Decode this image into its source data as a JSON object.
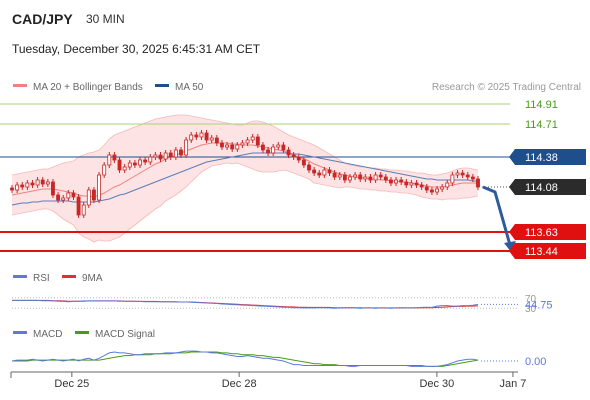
{
  "header": {
    "symbol": "CAD/JPY",
    "timeframe": "30 MIN",
    "datetime": "Tuesday, December 30, 2025 6:45:31 AM CET"
  },
  "legend": {
    "ma20": "MA 20 + Bollinger Bands",
    "ma50": "MA 50",
    "credit": "Research © 2025 Trading Central"
  },
  "colors": {
    "candle": "#c62828",
    "ma20": "#f28080",
    "band_fill": "#fde3e3",
    "ma50": "#5b7db8",
    "current_line": "#1f4e8c",
    "resistance": "#a5d37a",
    "resistance_text": "#4a9a1a",
    "support": "#e01010",
    "arrow": "#2e5c9a",
    "rsi": "#5b7bd5",
    "rsi_ma": "#e03030",
    "macd": "#5b7bd5",
    "macd_signal": "#4a9a1a"
  },
  "chart_data": [
    {
      "type": "candlestick",
      "series_names": [
        "MA 20 + Bollinger Bands",
        "MA 50"
      ],
      "ylim": [
        113.4,
        115.0
      ],
      "x_ticks": [
        {
          "label": "Dec 25",
          "pos": 0.12
        },
        {
          "label": "Dec 28",
          "pos": 0.45
        },
        {
          "label": "Dec 30",
          "pos": 0.84
        },
        {
          "label": "Jan 7",
          "pos": 0.99
        }
      ],
      "levels": [
        {
          "value": 114.91,
          "label": "114.91",
          "kind": "resistance"
        },
        {
          "value": 114.71,
          "label": "114.71",
          "kind": "resistance"
        },
        {
          "value": 114.38,
          "label": "114.38",
          "kind": "pivot"
        },
        {
          "value": 114.08,
          "label": "114.08",
          "kind": "last"
        },
        {
          "value": 113.63,
          "label": "113.63",
          "kind": "support"
        },
        {
          "value": 113.44,
          "label": "113.44",
          "kind": "support"
        }
      ],
      "close": [
        114.05,
        114.1,
        114.08,
        114.12,
        114.1,
        114.15,
        114.11,
        114.13,
        114.0,
        113.95,
        113.97,
        114.02,
        113.98,
        113.8,
        113.9,
        114.05,
        113.95,
        114.2,
        114.3,
        114.4,
        114.35,
        114.25,
        114.28,
        114.32,
        114.3,
        114.35,
        114.33,
        114.38,
        114.4,
        114.36,
        114.42,
        114.38,
        114.45,
        114.4,
        114.55,
        114.6,
        114.58,
        114.62,
        114.55,
        114.57,
        114.52,
        114.48,
        114.5,
        114.46,
        114.5,
        114.52,
        114.55,
        114.58,
        114.5,
        114.45,
        114.42,
        114.48,
        114.5,
        114.45,
        114.4,
        114.38,
        114.35,
        114.3,
        114.25,
        114.22,
        114.2,
        114.25,
        114.22,
        114.18,
        114.2,
        114.15,
        114.18,
        114.2,
        114.16,
        114.18,
        114.15,
        114.2,
        114.18,
        114.15,
        114.12,
        114.15,
        114.13,
        114.1,
        114.12,
        114.1,
        114.08,
        114.05,
        114.03,
        114.06,
        114.08,
        114.12,
        114.2,
        114.22,
        114.2,
        114.18,
        114.16,
        114.08
      ],
      "ma20": [
        114.0,
        114.01,
        114.02,
        114.03,
        114.04,
        114.05,
        114.06,
        114.06,
        114.06,
        114.05,
        114.04,
        114.03,
        114.02,
        114.0,
        113.99,
        113.99,
        113.98,
        114.0,
        114.02,
        114.05,
        114.08,
        114.1,
        114.13,
        114.16,
        114.19,
        114.22,
        114.25,
        114.28,
        114.31,
        114.33,
        114.36,
        114.38,
        114.4,
        114.42,
        114.44,
        114.46,
        114.48,
        114.5,
        114.51,
        114.52,
        114.52,
        114.52,
        114.52,
        114.51,
        114.51,
        114.5,
        114.5,
        114.5,
        114.49,
        114.48,
        114.47,
        114.46,
        114.45,
        114.44,
        114.42,
        114.4,
        114.38,
        114.36,
        114.34,
        114.31,
        114.29,
        114.27,
        114.25,
        114.23,
        114.21,
        114.2,
        114.19,
        114.18,
        114.17,
        114.17,
        114.16,
        114.16,
        114.15,
        114.15,
        114.14,
        114.14,
        114.13,
        114.13,
        114.12,
        114.11,
        114.1,
        114.09,
        114.08,
        114.08,
        114.08,
        114.09,
        114.1,
        114.11,
        114.12,
        114.12,
        114.12,
        114.12
      ],
      "bb_upper": [
        114.2,
        114.21,
        114.22,
        114.23,
        114.24,
        114.25,
        114.26,
        114.26,
        114.28,
        114.3,
        114.32,
        114.33,
        114.34,
        114.38,
        114.4,
        114.42,
        114.43,
        114.45,
        114.5,
        114.56,
        114.6,
        114.62,
        114.64,
        114.66,
        114.68,
        114.7,
        114.72,
        114.74,
        114.76,
        114.77,
        114.78,
        114.79,
        114.8,
        114.8,
        114.8,
        114.79,
        114.78,
        114.77,
        114.76,
        114.75,
        114.74,
        114.73,
        114.72,
        114.71,
        114.7,
        114.7,
        114.72,
        114.74,
        114.74,
        114.73,
        114.71,
        114.69,
        114.66,
        114.63,
        114.6,
        114.58,
        114.56,
        114.54,
        114.52,
        114.5,
        114.47,
        114.44,
        114.41,
        114.38,
        114.35,
        114.32,
        114.3,
        114.29,
        114.28,
        114.28,
        114.27,
        114.27,
        114.26,
        114.26,
        114.25,
        114.25,
        114.24,
        114.24,
        114.23,
        114.22,
        114.22,
        114.21,
        114.2,
        114.2,
        114.21,
        114.22,
        114.24,
        114.26,
        114.27,
        114.27,
        114.26,
        114.25
      ],
      "bb_lower": [
        113.8,
        113.81,
        113.82,
        113.83,
        113.84,
        113.85,
        113.86,
        113.86,
        113.84,
        113.8,
        113.76,
        113.73,
        113.7,
        113.62,
        113.58,
        113.56,
        113.53,
        113.55,
        113.54,
        113.54,
        113.56,
        113.58,
        113.62,
        113.66,
        113.7,
        113.74,
        113.78,
        113.82,
        113.86,
        113.89,
        113.94,
        113.97,
        114.0,
        114.04,
        114.08,
        114.13,
        114.18,
        114.23,
        114.26,
        114.29,
        114.3,
        114.31,
        114.32,
        114.31,
        114.32,
        114.3,
        114.28,
        114.26,
        114.24,
        114.23,
        114.23,
        114.23,
        114.24,
        114.25,
        114.24,
        114.22,
        114.2,
        114.18,
        114.16,
        114.12,
        114.11,
        114.1,
        114.09,
        114.08,
        114.07,
        114.08,
        114.08,
        114.07,
        114.06,
        114.06,
        114.05,
        114.05,
        114.04,
        114.04,
        114.03,
        114.03,
        114.02,
        114.02,
        114.01,
        114.0,
        113.98,
        113.97,
        113.96,
        113.96,
        113.95,
        113.96,
        113.96,
        113.96,
        113.97,
        113.97,
        113.98,
        113.99
      ],
      "ma50": [
        113.9,
        113.91,
        113.92,
        113.92,
        113.93,
        113.93,
        113.94,
        113.94,
        113.94,
        113.94,
        113.94,
        113.94,
        113.93,
        113.93,
        113.93,
        113.93,
        113.93,
        113.94,
        113.95,
        113.96,
        113.98,
        114.0,
        114.01,
        114.03,
        114.05,
        114.07,
        114.09,
        114.11,
        114.13,
        114.15,
        114.17,
        114.19,
        114.21,
        114.23,
        114.25,
        114.27,
        114.29,
        114.31,
        114.33,
        114.34,
        114.35,
        114.36,
        114.37,
        114.38,
        114.39,
        114.4,
        114.41,
        114.42,
        114.42,
        114.42,
        114.42,
        114.42,
        114.42,
        114.42,
        114.42,
        114.41,
        114.41,
        114.4,
        114.39,
        114.38,
        114.37,
        114.36,
        114.35,
        114.34,
        114.33,
        114.32,
        114.31,
        114.3,
        114.29,
        114.28,
        114.27,
        114.26,
        114.25,
        114.24,
        114.23,
        114.22,
        114.21,
        114.2,
        114.19,
        114.18,
        114.17,
        114.16,
        114.16,
        114.15,
        114.15,
        114.15,
        114.15,
        114.15,
        114.15,
        114.15,
        114.14,
        114.14
      ],
      "projection": [
        114.08,
        113.44
      ]
    },
    {
      "type": "line",
      "title": "RSI",
      "series_names": [
        "RSI",
        "9MA"
      ],
      "ylim": [
        0,
        100
      ],
      "levels": [
        70,
        30
      ],
      "level_labels": [
        "70",
        "30"
      ],
      "last_value_label": "44.75",
      "rsi": [
        60,
        60,
        60,
        60,
        60,
        60,
        59,
        59,
        58,
        57,
        56,
        55,
        56,
        57,
        58,
        58,
        58,
        58,
        58,
        58,
        58,
        57,
        57,
        57,
        56,
        56,
        55,
        55,
        55,
        55,
        55,
        55,
        54,
        54,
        54,
        53,
        52,
        51,
        50,
        49,
        48,
        46,
        45,
        44,
        43,
        42,
        41,
        40,
        39,
        38,
        37,
        36,
        35,
        34,
        33,
        32,
        32,
        31,
        31,
        31,
        32,
        32,
        31,
        30,
        31,
        32,
        32,
        31,
        30,
        31,
        31,
        30,
        31,
        31,
        30,
        31,
        32,
        31,
        31,
        32,
        33,
        34,
        33,
        38,
        40,
        40,
        38,
        38,
        40,
        40,
        41,
        44.75
      ],
      "rsi_ma": [
        60,
        60,
        60,
        60,
        60,
        60,
        60,
        60,
        59,
        59,
        58,
        57,
        57,
        57,
        57,
        58,
        58,
        58,
        58,
        58,
        58,
        58,
        57,
        57,
        57,
        56,
        56,
        56,
        56,
        55,
        55,
        55,
        55,
        54,
        54,
        54,
        53,
        52,
        51,
        50,
        49,
        48,
        47,
        46,
        45,
        44,
        43,
        42,
        41,
        40,
        39,
        38,
        37,
        36,
        35,
        35,
        34,
        34,
        33,
        33,
        33,
        33,
        33,
        32,
        32,
        32,
        32,
        32,
        32,
        31,
        31,
        31,
        31,
        31,
        31,
        31,
        31,
        31,
        31,
        31,
        32,
        32,
        32,
        33,
        34,
        35,
        36,
        37,
        37,
        38,
        38,
        39
      ]
    },
    {
      "type": "line",
      "title": "MACD",
      "series_names": [
        "MACD",
        "MACD Signal"
      ],
      "ylim": [
        -0.1,
        0.2
      ],
      "zero_label": "0.00",
      "macd": [
        0.0,
        0.01,
        0.01,
        0.01,
        0.02,
        0.01,
        0.0,
        0.01,
        0.02,
        0.01,
        0.0,
        0.01,
        0.02,
        0.0,
        0.02,
        0.03,
        0.01,
        0.03,
        0.06,
        0.09,
        0.1,
        0.09,
        0.09,
        0.08,
        0.07,
        0.07,
        0.08,
        0.08,
        0.08,
        0.08,
        0.09,
        0.09,
        0.09,
        0.1,
        0.11,
        0.11,
        0.11,
        0.1,
        0.1,
        0.09,
        0.09,
        0.08,
        0.07,
        0.06,
        0.05,
        0.05,
        0.06,
        0.05,
        0.04,
        0.03,
        0.03,
        0.02,
        0.01,
        0.0,
        -0.02,
        -0.04,
        -0.04,
        -0.05,
        -0.05,
        -0.05,
        -0.05,
        -0.05,
        -0.05,
        -0.05,
        -0.05,
        -0.05,
        -0.06,
        -0.06,
        -0.05,
        -0.05,
        -0.05,
        -0.05,
        -0.05,
        -0.05,
        -0.05,
        -0.05,
        -0.05,
        -0.05,
        -0.06,
        -0.06,
        -0.06,
        -0.06,
        -0.06,
        -0.06,
        -0.05,
        -0.04,
        -0.02,
        0.0,
        0.01,
        0.02,
        0.02,
        0.01
      ],
      "signal": [
        0.0,
        0.0,
        0.0,
        0.0,
        0.01,
        0.01,
        0.01,
        0.01,
        0.01,
        0.01,
        0.01,
        0.01,
        0.01,
        0.01,
        0.01,
        0.01,
        0.01,
        0.01,
        0.02,
        0.03,
        0.04,
        0.05,
        0.06,
        0.06,
        0.07,
        0.07,
        0.07,
        0.07,
        0.08,
        0.08,
        0.08,
        0.08,
        0.09,
        0.09,
        0.09,
        0.1,
        0.1,
        0.1,
        0.1,
        0.1,
        0.1,
        0.09,
        0.09,
        0.08,
        0.08,
        0.07,
        0.07,
        0.07,
        0.06,
        0.06,
        0.05,
        0.04,
        0.04,
        0.03,
        0.02,
        0.01,
        0.0,
        -0.01,
        -0.02,
        -0.03,
        -0.03,
        -0.04,
        -0.04,
        -0.04,
        -0.05,
        -0.05,
        -0.05,
        -0.05,
        -0.05,
        -0.05,
        -0.05,
        -0.05,
        -0.05,
        -0.05,
        -0.05,
        -0.05,
        -0.05,
        -0.05,
        -0.05,
        -0.05,
        -0.05,
        -0.06,
        -0.06,
        -0.06,
        -0.06,
        -0.05,
        -0.04,
        -0.03,
        -0.02,
        -0.01,
        0.0,
        0.01
      ]
    }
  ]
}
